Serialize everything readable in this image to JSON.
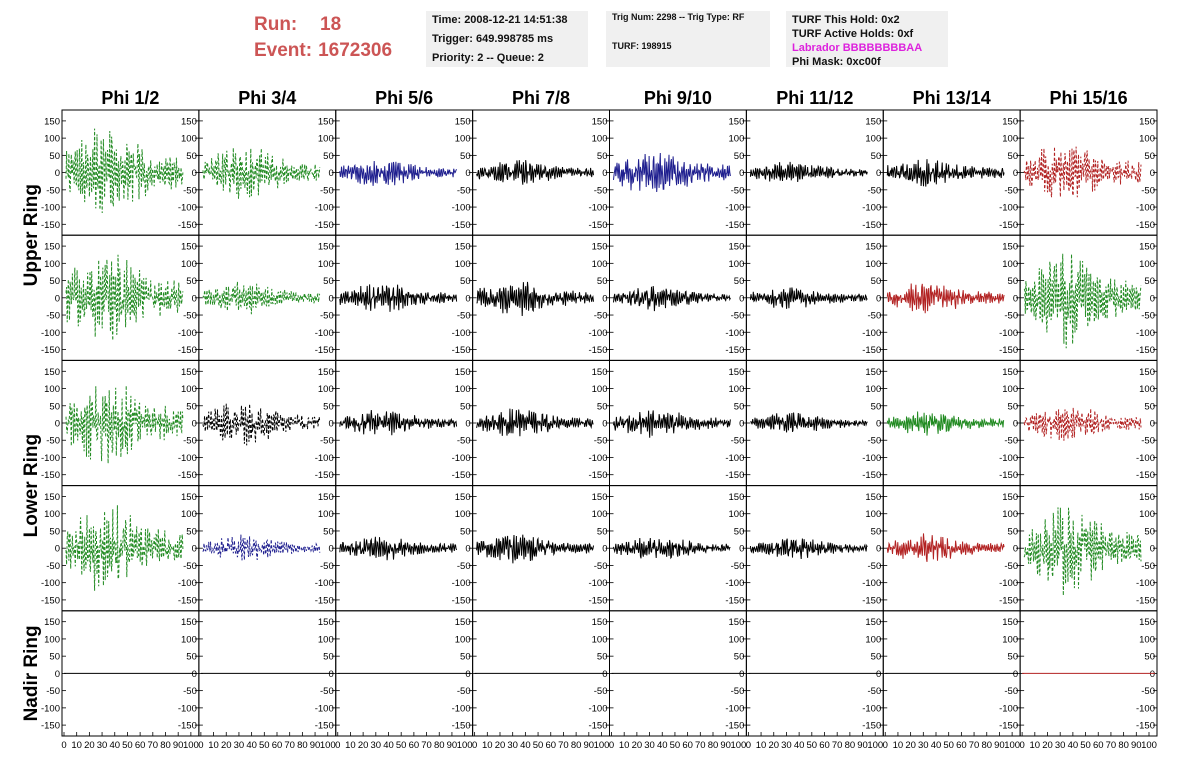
{
  "header": {
    "run_label": "Run:",
    "run_value": "18",
    "event_label": "Event:",
    "event_value": "1672306",
    "time": "Time: 2008-12-21 14:51:38",
    "trigger": "Trigger: 649.998785 ms",
    "priority": "Priority: 2 -- Queue: 2",
    "trig_num": "Trig Num: 2298 -- Trig Type: RF",
    "turf": "TURF: 198915",
    "turf_hold": "TURF This Hold: 0x2",
    "turf_active": "TURF Active Holds: 0xf",
    "labrador": "Labrador BBBBBBBBAA",
    "phi_mask": "Phi Mask: 0xc00f"
  },
  "colors": {
    "header_red": "#cc5555",
    "labrador": "#dd22dd",
    "green": "#228b22",
    "blue": "#1f1f8f",
    "red": "#b22222",
    "black": "#000000"
  },
  "chart_data": {
    "type": "line",
    "columns": [
      "Phi 1/2",
      "Phi 3/4",
      "Phi 5/6",
      "Phi 7/8",
      "Phi 9/10",
      "Phi 11/12",
      "Phi 13/14",
      "Phi 15/16"
    ],
    "rows": [
      "Upper Ring",
      "Lower Ring",
      "Nadir Ring"
    ],
    "xlim": [
      0,
      100
    ],
    "ylim": [
      -170,
      170
    ],
    "x_ticks": [
      "0",
      "10",
      "20",
      "30",
      "40",
      "50",
      "60",
      "70",
      "80",
      "90",
      "100"
    ],
    "y_ticks": [
      -150,
      -100,
      -50,
      0,
      50,
      100,
      150
    ],
    "panels": [
      [
        {
          "color": "green",
          "style": "dashed",
          "amplitude": 140
        },
        {
          "color": "green",
          "style": "dashed",
          "amplitude": 85
        },
        {
          "color": "blue",
          "style": "solid",
          "amplitude": 45
        },
        {
          "color": "black",
          "style": "solid",
          "amplitude": 40
        },
        {
          "color": "blue",
          "style": "solid",
          "amplitude": 70
        },
        {
          "color": "black",
          "style": "solid",
          "amplitude": 35
        },
        {
          "color": "black",
          "style": "solid",
          "amplitude": 45
        },
        {
          "color": "red",
          "style": "dashed",
          "amplitude": 100
        }
      ],
      [
        {
          "color": "green",
          "style": "dashed",
          "amplitude": 150
        },
        {
          "color": "green",
          "style": "dashed",
          "amplitude": 50
        },
        {
          "color": "black",
          "style": "solid",
          "amplitude": 45
        },
        {
          "color": "black",
          "style": "solid",
          "amplitude": 55
        },
        {
          "color": "black",
          "style": "solid",
          "amplitude": 40
        },
        {
          "color": "black",
          "style": "solid",
          "amplitude": 35
        },
        {
          "color": "red",
          "style": "solid",
          "amplitude": 50
        },
        {
          "color": "green",
          "style": "dashed",
          "amplitude": 150
        }
      ],
      [
        {
          "color": "green",
          "style": "dashed",
          "amplitude": 140
        },
        {
          "color": "black",
          "style": "dashed",
          "amplitude": 70
        },
        {
          "color": "black",
          "style": "solid",
          "amplitude": 40
        },
        {
          "color": "black",
          "style": "solid",
          "amplitude": 45
        },
        {
          "color": "black",
          "style": "solid",
          "amplitude": 45
        },
        {
          "color": "black",
          "style": "solid",
          "amplitude": 35
        },
        {
          "color": "green",
          "style": "solid",
          "amplitude": 40
        },
        {
          "color": "red",
          "style": "dashed",
          "amplitude": 60
        }
      ],
      [
        {
          "color": "green",
          "style": "dashed",
          "amplitude": 140
        },
        {
          "color": "blue",
          "style": "dashed",
          "amplitude": 40
        },
        {
          "color": "black",
          "style": "solid",
          "amplitude": 40
        },
        {
          "color": "black",
          "style": "solid",
          "amplitude": 45
        },
        {
          "color": "black",
          "style": "solid",
          "amplitude": 40
        },
        {
          "color": "black",
          "style": "solid",
          "amplitude": 35
        },
        {
          "color": "red",
          "style": "solid",
          "amplitude": 45
        },
        {
          "color": "green",
          "style": "dashed",
          "amplitude": 140
        }
      ],
      [
        {
          "color": "black",
          "style": "solid",
          "amplitude": 0
        },
        {
          "color": "black",
          "style": "solid",
          "amplitude": 0
        },
        {
          "color": "black",
          "style": "solid",
          "amplitude": 0
        },
        {
          "color": "black",
          "style": "solid",
          "amplitude": 0
        },
        {
          "color": "black",
          "style": "solid",
          "amplitude": 0
        },
        {
          "color": "black",
          "style": "solid",
          "amplitude": 0
        },
        {
          "color": "black",
          "style": "solid",
          "amplitude": 0
        },
        {
          "color": "red",
          "style": "solid",
          "amplitude": 0
        }
      ]
    ]
  }
}
